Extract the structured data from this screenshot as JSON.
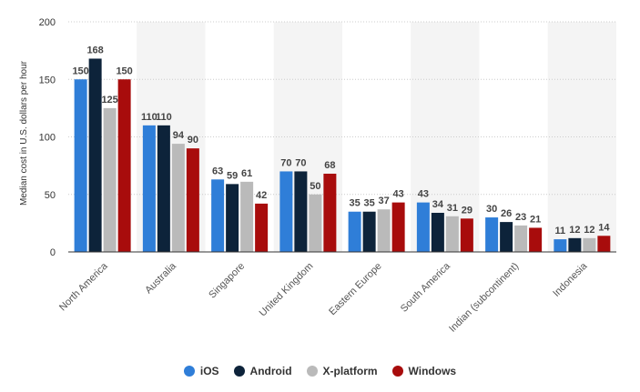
{
  "chart_data": {
    "type": "bar",
    "ylabel": "Median cost in U.S. dollars per hour",
    "ylim": [
      0,
      200
    ],
    "yticks": [
      "0",
      "50",
      "100",
      "150",
      "200"
    ],
    "grid": true,
    "legend_position": "bottom-center",
    "categories": [
      "North America",
      "Australia",
      "Singapore",
      "United Kingdom",
      "Eastern Europe",
      "South America",
      "Indian (subcontinent)",
      "Indonesia"
    ],
    "series": [
      {
        "name": "iOS",
        "color": "#2f7ed8",
        "values": [
          150,
          110,
          63,
          70,
          35,
          43,
          30,
          11
        ]
      },
      {
        "name": "Android",
        "color": "#0d233a",
        "values": [
          168,
          110,
          59,
          70,
          35,
          34,
          26,
          12
        ]
      },
      {
        "name": "X-platform",
        "color": "#bababa",
        "values": [
          125,
          94,
          61,
          50,
          37,
          31,
          23,
          12
        ]
      },
      {
        "name": "Windows",
        "color": "#a80c0c",
        "values": [
          150,
          90,
          42,
          68,
          43,
          29,
          21,
          14
        ]
      }
    ]
  }
}
